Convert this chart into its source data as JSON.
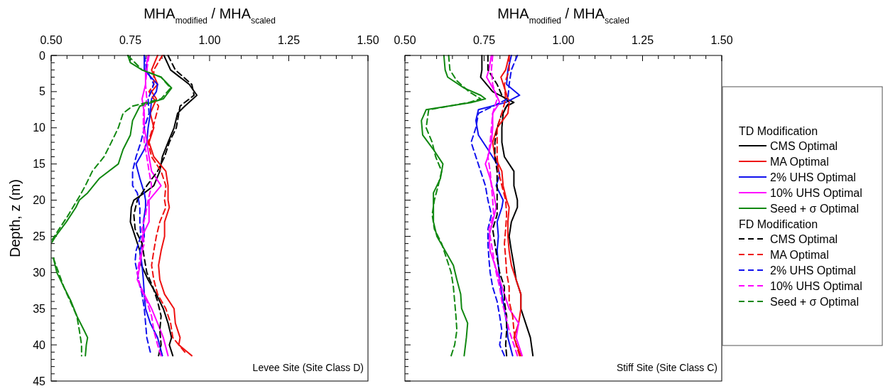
{
  "chart_data": [
    {
      "type": "line",
      "xlabel": "MHA$_{modified}$ / MHA$_{scaled}$",
      "ylabel": "Depth, z (m)",
      "xlim": [
        0.5,
        1.5
      ],
      "xticks": [
        {
          "value": 0.5,
          "label": "0.50"
        },
        {
          "value": 0.75,
          "label": "0.75"
        },
        {
          "value": 1.0,
          "label": "1.00"
        },
        {
          "value": 1.25,
          "label": "1.25"
        },
        {
          "value": 1.5,
          "label": "1.50"
        }
      ],
      "ylim": [
        45,
        0
      ],
      "yticks": [
        0,
        5,
        10,
        15,
        20,
        25,
        30,
        35,
        40,
        45
      ],
      "annotations": [
        "Levee Site (Site Class D)"
      ],
      "series": [
        {
          "color": "#000000",
          "line_style": "solid",
          "x": [
            0.856,
            0.877,
            0.936,
            0.96,
            0.922,
            0.899,
            0.888,
            0.869,
            0.851,
            0.843,
            0.824,
            0.794,
            0.761,
            0.753,
            0.75,
            0.765,
            0.78,
            0.785,
            0.806,
            0.832,
            0.854,
            0.869,
            0.88,
            0.873,
            0.884
          ],
          "values": [
            0,
            2,
            4,
            5.5,
            7,
            8,
            10,
            12,
            14,
            16,
            18,
            19,
            20,
            21,
            23,
            25,
            27,
            29,
            31,
            33,
            35,
            37,
            39,
            40,
            41.5
          ]
        },
        {
          "color": "#ee1111",
          "line_style": "solid",
          "x": [
            0.836,
            0.817,
            0.836,
            0.817,
            0.832,
            0.813,
            0.824,
            0.809,
            0.824,
            0.862,
            0.869,
            0.869,
            0.873,
            0.858,
            0.858,
            0.847,
            0.839,
            0.843,
            0.858,
            0.888,
            0.892,
            0.907,
            0.903,
            0.944
          ],
          "values": [
            0,
            2,
            4,
            5,
            6,
            8,
            10,
            12,
            14,
            16,
            18,
            20,
            21,
            23,
            25,
            27,
            29,
            31,
            33,
            35,
            37,
            39,
            40,
            41.5
          ]
        },
        {
          "color": "#1111ee",
          "line_style": "solid",
          "x": [
            0.794,
            0.794,
            0.836,
            0.832,
            0.817,
            0.813,
            0.806,
            0.802,
            0.794,
            0.768,
            0.78,
            0.794,
            0.798,
            0.798,
            0.791,
            0.794,
            0.78,
            0.787,
            0.791,
            0.794,
            0.798,
            0.813,
            0.836,
            0.851
          ],
          "values": [
            0,
            2,
            4,
            5,
            6,
            8,
            10,
            12,
            13,
            15,
            17,
            19,
            20,
            21,
            23,
            25,
            27,
            29,
            31,
            33,
            35,
            37,
            39,
            41.5
          ]
        },
        {
          "color": "#ff00ff",
          "line_style": "solid",
          "x": [
            0.806,
            0.798,
            0.798,
            0.787,
            0.794,
            0.794,
            0.802,
            0.809,
            0.817,
            0.847,
            0.809,
            0.809,
            0.809,
            0.787,
            0.787,
            0.78,
            0.772,
            0.794,
            0.817,
            0.836,
            0.854,
            0.869
          ],
          "values": [
            0,
            2,
            4,
            6,
            8,
            10,
            12,
            14,
            16,
            18,
            20,
            21,
            23,
            25,
            27,
            29,
            31,
            33,
            35,
            37,
            39,
            41.5
          ]
        },
        {
          "color": "#118811",
          "line_style": "solid",
          "x": [
            0.742,
            0.75,
            0.787,
            0.847,
            0.88,
            0.854,
            0.78,
            0.757,
            0.75,
            0.727,
            0.712,
            0.652,
            0.615,
            0.589,
            0.578,
            0.548,
            0.514,
            0.503,
            null,
            0.507,
            0.518,
            0.54,
            0.563,
            0.581,
            0.604,
            0.615,
            0.611,
            0.608
          ],
          "values": [
            0,
            1,
            2,
            3,
            4.5,
            6,
            7,
            9,
            11,
            13,
            15,
            17,
            19,
            20,
            21,
            23,
            25,
            25.8,
            null,
            28,
            30,
            32,
            34,
            36,
            38,
            39,
            40,
            41.5
          ]
        },
        {
          "color": "#000000",
          "line_style": "dashed",
          "x": [
            0.869,
            0.892,
            0.944,
            0.951,
            0.907,
            0.895,
            0.873,
            0.858,
            0.836,
            0.802,
            0.772,
            0.761,
            0.765,
            0.787,
            0.794,
            0.802,
            0.821,
            0.836,
            0.847,
            0.843,
            0.847,
            0.839
          ],
          "values": [
            0,
            2,
            4,
            5.5,
            7,
            10,
            12,
            14,
            16,
            18,
            20,
            22,
            24,
            26,
            28,
            30,
            32,
            34,
            36,
            38,
            40,
            41.5
          ]
        },
        {
          "color": "#ee1111",
          "line_style": "dashed",
          "x": [
            0.851,
            0.824,
            0.824,
            0.809,
            0.839,
            0.821,
            0.806,
            0.817,
            0.847,
            0.862,
            0.858,
            0.862,
            0.843,
            0.832,
            0.824,
            0.817,
            0.824,
            0.836,
            0.862,
            0.877,
            0.884,
            0.922
          ],
          "values": [
            0,
            2,
            4,
            5,
            7,
            10,
            12,
            14,
            16,
            18,
            20,
            21,
            23,
            25,
            27,
            29,
            31,
            33,
            35,
            37,
            39,
            41
          ]
        },
        {
          "color": "#1111ee",
          "line_style": "dashed",
          "x": [
            0.794,
            0.802,
            0.824,
            0.806,
            0.809,
            0.794,
            0.783,
            0.768,
            0.757,
            0.757,
            0.772,
            0.78,
            0.78,
            0.783,
            0.768,
            0.765,
            0.776,
            0.787,
            0.794,
            0.798,
            0.802,
            0.813
          ],
          "values": [
            0,
            2,
            4,
            6,
            8,
            10,
            12,
            14,
            16,
            18,
            19,
            21,
            23,
            25,
            27,
            28.5,
            31,
            33,
            35,
            37,
            39,
            41
          ]
        },
        {
          "color": "#ff00ff",
          "line_style": "dashed",
          "x": [
            0.809,
            0.802,
            0.798,
            0.802,
            0.791,
            0.791,
            0.794,
            0.802,
            0.809,
            0.817,
            0.806,
            0.798,
            0.787,
            0.794,
            0.78,
            0.772,
            0.78,
            0.802,
            0.817,
            0.824,
            0.836,
            0.847
          ],
          "values": [
            0,
            2,
            4,
            6,
            8,
            10,
            12,
            14,
            16,
            18,
            20,
            22,
            24,
            26,
            28,
            30,
            32,
            34,
            36,
            38,
            40,
            41.5
          ]
        },
        {
          "color": "#118811",
          "line_style": "dashed",
          "x": [
            0.742,
            0.787,
            0.847,
            0.877,
            0.847,
            0.757,
            0.727,
            0.712,
            0.69,
            0.667,
            0.63,
            0.608,
            0.589,
            0.555,
            0.525,
            0.503,
            null,
            0.507,
            0.54,
            0.581,
            0.589,
            0.596,
            0.596
          ],
          "values": [
            0,
            2,
            3,
            4.5,
            6,
            7,
            8,
            10,
            12,
            14,
            16,
            18,
            19.5,
            22,
            24,
            25.5,
            null,
            28,
            32,
            36,
            38,
            40,
            41.5
          ]
        }
      ]
    },
    {
      "type": "line",
      "xlabel": "MHA$_{modified}$ / MHA$_{scaled}$",
      "xlim": [
        0.5,
        1.5
      ],
      "xticks": [
        {
          "value": 0.5,
          "label": "0.50"
        },
        {
          "value": 0.75,
          "label": "0.75"
        },
        {
          "value": 1.0,
          "label": "1.00"
        },
        {
          "value": 1.25,
          "label": "1.25"
        },
        {
          "value": 1.5,
          "label": "1.50"
        }
      ],
      "ylim": [
        45,
        0
      ],
      "yticks": [
        0,
        5,
        10,
        15,
        20,
        25,
        30,
        35,
        40,
        45
      ],
      "tick_labels": "x",
      "legend": "right",
      "legend_title": "TD Modification",
      "annotations": [
        "Stiff Site (Site Class C)",
        "FD Modification"
      ],
      "series": [
        {
          "name": "CMS Optimal",
          "color": "#000000",
          "line_style": "solid",
          "x": [
            0.743,
            0.743,
            0.739,
            0.777,
            0.844,
            0.821,
            0.81,
            0.806,
            0.806,
            0.814,
            0.844,
            0.844,
            0.855,
            0.855,
            0.836,
            0.829,
            0.836,
            0.844,
            0.851,
            0.866,
            0.866,
            0.881,
            0.896,
            0.904
          ],
          "values": [
            0,
            2,
            3,
            5,
            6.5,
            7,
            8,
            10,
            12,
            14,
            16,
            18,
            20,
            21,
            23,
            25,
            27,
            29,
            31,
            33,
            35,
            37,
            39,
            41.5
          ]
        },
        {
          "name": "MA Optimal",
          "color": "#ee1111",
          "line_style": "solid",
          "x": [
            0.829,
            0.818,
            0.803,
            0.818,
            0.829,
            0.825,
            0.791,
            0.777,
            0.784,
            0.806,
            0.81,
            0.821,
            0.829,
            0.825,
            0.825,
            0.829,
            0.836,
            0.851,
            0.866,
            0.866,
            0.859,
            0.844,
            0.866
          ],
          "values": [
            0,
            2,
            3,
            5,
            6.5,
            8,
            10,
            12,
            14,
            16,
            18,
            20,
            21,
            23,
            25,
            27,
            29,
            31,
            33,
            35,
            37,
            39,
            41.5
          ]
        },
        {
          "name": "2% UHS Optimal",
          "color": "#1111ee",
          "line_style": "solid",
          "x": [
            0.836,
            0.825,
            0.821,
            0.862,
            0.818,
            0.732,
            0.724,
            0.732,
            0.762,
            0.791,
            0.799,
            0.788,
            0.81,
            0.806,
            0.791,
            0.795,
            0.791,
            0.795,
            0.799,
            0.806,
            0.814,
            0.821,
            0.825,
            0.84
          ],
          "values": [
            0,
            2,
            4,
            5.5,
            6.5,
            7.5,
            9,
            11,
            13,
            15,
            16.5,
            18,
            20,
            21,
            23,
            25,
            27,
            29,
            31,
            33,
            35,
            37,
            39,
            41.5
          ]
        },
        {
          "name": "10% UHS Optimal",
          "color": "#ff00ff",
          "line_style": "solid",
          "x": [
            0.773,
            0.765,
            0.758,
            0.784,
            0.799,
            0.777,
            0.777,
            0.773,
            0.762,
            0.754,
            0.769,
            0.78,
            0.784,
            0.788,
            0.777,
            0.765,
            0.769,
            0.784,
            0.799,
            0.814,
            0.829,
            0.859,
            0.851,
            0.87
          ],
          "values": [
            0,
            2,
            3,
            5,
            6.5,
            8,
            10,
            12,
            14,
            15,
            17,
            19,
            20,
            21,
            23,
            25,
            27,
            29,
            31,
            33,
            35,
            37,
            39,
            41.5
          ]
        },
        {
          "name": "Seed + σ Optimal",
          "color": "#118811",
          "line_style": "solid",
          "x": [
            0.623,
            0.627,
            0.635,
            0.687,
            0.739,
            0.754,
            0.709,
            0.567,
            0.552,
            0.556,
            0.59,
            0.62,
            0.612,
            0.59,
            0.59,
            0.59,
            0.601,
            0.627,
            0.653,
            0.664,
            0.676,
            0.679,
            0.698,
            0.694,
            0.687
          ],
          "values": [
            0,
            2,
            3,
            4.5,
            5.5,
            6,
            6.5,
            7.5,
            9,
            11,
            13,
            15,
            17,
            19,
            21,
            23,
            25,
            27,
            29,
            31,
            33,
            35,
            37,
            39,
            41.5
          ]
        },
        {
          "name": "CMS Optimal",
          "color": "#000000",
          "line_style": "dashed",
          "x": [
            0.762,
            0.762,
            0.791,
            0.806,
            0.829,
            0.806,
            0.791,
            0.784,
            0.784,
            0.791,
            0.791,
            0.791,
            0.791,
            0.777,
            0.784,
            0.791,
            0.799,
            0.814,
            0.814,
            0.821,
            0.821,
            0.818,
            0.821
          ],
          "values": [
            0,
            2,
            4,
            5.5,
            6.5,
            8,
            10,
            12,
            14,
            16,
            18,
            20,
            22,
            24,
            26,
            28,
            30,
            32,
            34,
            36,
            38,
            40,
            41.5
          ]
        },
        {
          "name": "MA Optimal",
          "color": "#ee1111",
          "line_style": "dashed",
          "x": [
            0.829,
            0.829,
            0.814,
            0.818,
            0.806,
            0.791,
            0.791,
            0.791,
            0.795,
            0.806,
            0.818,
            0.821,
            0.818,
            0.814,
            0.818,
            0.821,
            0.829,
            0.829,
            0.84,
            0.844,
            0.851,
            0.862
          ],
          "values": [
            0,
            2,
            4,
            6,
            8,
            10,
            12,
            14,
            16,
            18,
            20,
            22,
            24,
            26,
            28,
            30,
            32,
            34,
            36,
            38,
            40,
            41.5
          ]
        },
        {
          "name": "2% UHS Optimal",
          "color": "#1111ee",
          "line_style": "dashed",
          "x": [
            0.855,
            0.836,
            0.829,
            0.825,
            0.732,
            0.724,
            0.709,
            0.724,
            0.739,
            0.754,
            0.762,
            0.773,
            0.762,
            0.762,
            0.765,
            0.769,
            0.777,
            0.791,
            0.799,
            0.806,
            0.799,
            0.814
          ],
          "values": [
            0,
            2,
            4,
            6,
            8,
            10,
            12,
            14,
            16,
            18,
            20,
            22,
            24,
            26,
            28,
            30,
            32,
            34,
            36,
            38,
            40,
            41.5
          ]
        },
        {
          "name": "10% UHS Optimal",
          "color": "#ff00ff",
          "line_style": "dashed",
          "x": [
            0.777,
            0.773,
            0.777,
            0.791,
            0.777,
            0.773,
            0.769,
            0.762,
            0.769,
            0.773,
            0.777,
            0.78,
            0.765,
            0.773,
            0.78,
            0.788,
            0.799,
            0.806,
            0.818,
            0.829,
            0.844,
            0.855
          ],
          "values": [
            0,
            2,
            4,
            6,
            8,
            10,
            12,
            14,
            16,
            18,
            20,
            22,
            24,
            26,
            28,
            30,
            32,
            34,
            36,
            38,
            40,
            41.5
          ]
        },
        {
          "name": "Seed + σ Optimal",
          "color": "#118811",
          "line_style": "dashed",
          "x": [
            0.638,
            0.642,
            0.664,
            0.702,
            0.739,
            0.702,
            0.575,
            0.567,
            0.586,
            0.597,
            0.616,
            0.605,
            0.593,
            0.586,
            0.593,
            0.616,
            0.631,
            0.646,
            0.653,
            0.657,
            0.661,
            0.664,
            0.657,
            0.646
          ],
          "values": [
            0,
            2,
            3.5,
            5,
            6,
            6.5,
            7.5,
            10,
            12,
            14,
            16,
            18,
            20,
            22,
            24,
            26,
            28,
            30,
            32,
            34,
            36,
            38,
            40,
            41.5
          ]
        }
      ]
    }
  ]
}
